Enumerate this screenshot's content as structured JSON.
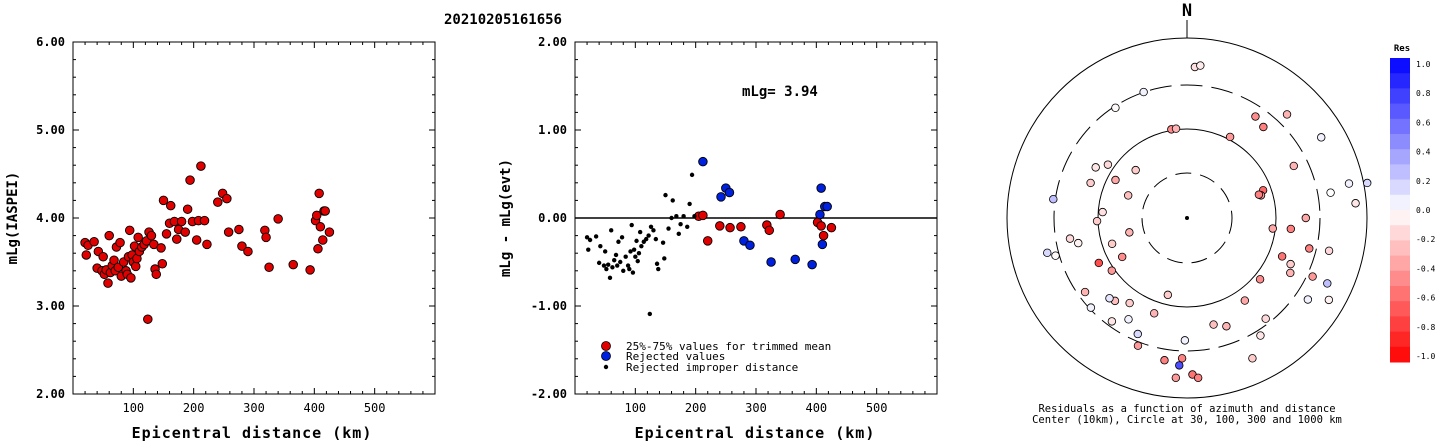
{
  "event_title": "20210205161656",
  "colors": {
    "trimmed": "#e00000",
    "rejected": "#0020e0",
    "improper": "#000000"
  },
  "chart_data": [
    {
      "type": "scatter",
      "ylabel": "mLg(IASPEI)",
      "xlabel": "Epicentral distance (km)",
      "xlim": [
        0,
        600
      ],
      "ylim": [
        2.0,
        6.0
      ],
      "xticks": [
        "100",
        "200",
        "300",
        "400",
        "500"
      ],
      "yticks": [
        "2.00",
        "3.00",
        "4.00",
        "5.00",
        "6.00"
      ],
      "points": [
        [
          20,
          3.72
        ],
        [
          22,
          3.58
        ],
        [
          25,
          3.69
        ],
        [
          35,
          3.73
        ],
        [
          40,
          3.43
        ],
        [
          42,
          3.62
        ],
        [
          48,
          3.4
        ],
        [
          50,
          3.56
        ],
        [
          52,
          3.36
        ],
        [
          55,
          3.41
        ],
        [
          58,
          3.26
        ],
        [
          60,
          3.8
        ],
        [
          62,
          3.38
        ],
        [
          65,
          3.46
        ],
        [
          68,
          3.52
        ],
        [
          70,
          3.4
        ],
        [
          72,
          3.67
        ],
        [
          75,
          3.44
        ],
        [
          78,
          3.72
        ],
        [
          80,
          3.34
        ],
        [
          84,
          3.5
        ],
        [
          88,
          3.4
        ],
        [
          90,
          3.36
        ],
        [
          92,
          3.56
        ],
        [
          94,
          3.86
        ],
        [
          96,
          3.32
        ],
        [
          98,
          3.58
        ],
        [
          100,
          3.5
        ],
        [
          102,
          3.68
        ],
        [
          104,
          3.45
        ],
        [
          106,
          3.54
        ],
        [
          108,
          3.78
        ],
        [
          110,
          3.62
        ],
        [
          114,
          3.67
        ],
        [
          118,
          3.7
        ],
        [
          122,
          3.74
        ],
        [
          124,
          2.85
        ],
        [
          126,
          3.84
        ],
        [
          130,
          3.8
        ],
        [
          134,
          3.7
        ],
        [
          136,
          3.42
        ],
        [
          138,
          3.36
        ],
        [
          146,
          3.66
        ],
        [
          148,
          3.48
        ],
        [
          150,
          4.2
        ],
        [
          155,
          3.82
        ],
        [
          160,
          3.94
        ],
        [
          162,
          4.14
        ],
        [
          168,
          3.96
        ],
        [
          172,
          3.76
        ],
        [
          175,
          3.87
        ],
        [
          180,
          3.96
        ],
        [
          186,
          3.84
        ],
        [
          190,
          4.1
        ],
        [
          194,
          4.43
        ],
        [
          198,
          3.96
        ],
        [
          205,
          3.75
        ],
        [
          208,
          3.97
        ],
        [
          212,
          4.59
        ],
        [
          218,
          3.97
        ],
        [
          222,
          3.7
        ],
        [
          240,
          4.18
        ],
        [
          248,
          4.28
        ],
        [
          255,
          4.22
        ],
        [
          258,
          3.84
        ],
        [
          275,
          3.87
        ],
        [
          280,
          3.68
        ],
        [
          290,
          3.62
        ],
        [
          318,
          3.86
        ],
        [
          320,
          3.78
        ],
        [
          325,
          3.44
        ],
        [
          340,
          3.99
        ],
        [
          365,
          3.47
        ],
        [
          393,
          3.41
        ],
        [
          402,
          3.97
        ],
        [
          404,
          4.03
        ],
        [
          406,
          3.65
        ],
        [
          408,
          4.28
        ],
        [
          410,
          3.9
        ],
        [
          414,
          3.75
        ],
        [
          416,
          4.08
        ],
        [
          418,
          4.08
        ],
        [
          425,
          3.84
        ]
      ]
    },
    {
      "type": "scatter",
      "ylabel": "mLg - mLg(evt)",
      "xlabel": "Epicentral distance (km)",
      "xlim": [
        0,
        600
      ],
      "ylim": [
        -2.0,
        2.0
      ],
      "xticks": [
        "100",
        "200",
        "300",
        "400",
        "500"
      ],
      "yticks": [
        "-2.00",
        "-1.00",
        "0.00",
        "1.00",
        "2.00"
      ],
      "annotation": "mLg= 3.94",
      "legend": [
        "25%-75% values for trimmed mean",
        "Rejected values",
        "Rejected improper distance"
      ],
      "series": [
        {
          "kind": "trimmed",
          "points": [
            [
              205,
              0.02
            ],
            [
              212,
              0.03
            ],
            [
              220,
              -0.26
            ],
            [
              240,
              -0.09
            ],
            [
              257,
              -0.11
            ],
            [
              275,
              -0.1
            ],
            [
              318,
              -0.08
            ],
            [
              322,
              -0.14
            ],
            [
              340,
              0.04
            ],
            [
              402,
              -0.05
            ],
            [
              408,
              -0.09
            ],
            [
              412,
              -0.2
            ],
            [
              425,
              -0.11
            ]
          ]
        },
        {
          "kind": "rejected",
          "points": [
            [
              212,
              0.64
            ],
            [
              242,
              0.24
            ],
            [
              250,
              0.34
            ],
            [
              256,
              0.29
            ],
            [
              280,
              -0.26
            ],
            [
              290,
              -0.31
            ],
            [
              325,
              -0.5
            ],
            [
              365,
              -0.47
            ],
            [
              393,
              -0.53
            ],
            [
              406,
              0.04
            ],
            [
              408,
              0.34
            ],
            [
              410,
              -0.3
            ],
            [
              414,
              0.13
            ],
            [
              418,
              0.13
            ]
          ]
        },
        {
          "kind": "improper",
          "points": [
            [
              20,
              -0.22
            ],
            [
              22,
              -0.36
            ],
            [
              25,
              -0.25
            ],
            [
              35,
              -0.21
            ],
            [
              40,
              -0.51
            ],
            [
              42,
              -0.32
            ],
            [
              48,
              -0.54
            ],
            [
              50,
              -0.38
            ],
            [
              52,
              -0.58
            ],
            [
              55,
              -0.53
            ],
            [
              58,
              -0.68
            ],
            [
              60,
              -0.14
            ],
            [
              62,
              -0.56
            ],
            [
              65,
              -0.48
            ],
            [
              68,
              -0.42
            ],
            [
              70,
              -0.54
            ],
            [
              72,
              -0.27
            ],
            [
              75,
              -0.5
            ],
            [
              78,
              -0.22
            ],
            [
              80,
              -0.6
            ],
            [
              84,
              -0.44
            ],
            [
              88,
              -0.54
            ],
            [
              90,
              -0.58
            ],
            [
              92,
              -0.38
            ],
            [
              94,
              -0.08
            ],
            [
              96,
              -0.62
            ],
            [
              98,
              -0.36
            ],
            [
              100,
              -0.44
            ],
            [
              102,
              -0.26
            ],
            [
              104,
              -0.49
            ],
            [
              106,
              -0.4
            ],
            [
              108,
              -0.16
            ],
            [
              110,
              -0.32
            ],
            [
              114,
              -0.27
            ],
            [
              118,
              -0.24
            ],
            [
              122,
              -0.2
            ],
            [
              124,
              -1.09
            ],
            [
              126,
              -0.1
            ],
            [
              130,
              -0.14
            ],
            [
              134,
              -0.24
            ],
            [
              136,
              -0.52
            ],
            [
              138,
              -0.58
            ],
            [
              146,
              -0.28
            ],
            [
              148,
              -0.46
            ],
            [
              150,
              0.26
            ],
            [
              155,
              -0.12
            ],
            [
              160,
              0.0
            ],
            [
              162,
              0.2
            ],
            [
              168,
              0.02
            ],
            [
              172,
              -0.18
            ],
            [
              175,
              -0.07
            ],
            [
              180,
              0.02
            ],
            [
              186,
              -0.1
            ],
            [
              190,
              0.16
            ],
            [
              194,
              0.49
            ],
            [
              198,
              0.02
            ]
          ]
        }
      ]
    },
    {
      "type": "polar-scatter",
      "north_label": "N",
      "caption_line1": "Residuals as a function of azimuth and distance",
      "caption_line2": "Center (10km), Circle at 30, 100, 300 and 1000 km",
      "rings": [
        30,
        100,
        300,
        1000
      ],
      "colorbar": {
        "title": "Res",
        "ticks": [
          "1.0",
          "0.8",
          "0.6",
          "0.4",
          "0.2",
          "0.0",
          "-0.2",
          "-0.4",
          "-0.6",
          "-0.8",
          "-1.0"
        ]
      },
      "points": [
        {
          "az": 3,
          "r": 0.84,
          "res": -0.12
        },
        {
          "az": 5,
          "r": 0.85,
          "res": -0.08
        },
        {
          "az": -19,
          "r": 0.74,
          "res": 0.05
        },
        {
          "az": -33,
          "r": 0.73,
          "res": -0.02
        },
        {
          "az": -10,
          "r": 0.5,
          "res": -0.45
        },
        {
          "az": -7,
          "r": 0.5,
          "res": -0.3
        },
        {
          "az": -47,
          "r": 0.39,
          "res": -0.2
        },
        {
          "az": -61,
          "r": 0.58,
          "res": -0.1
        },
        {
          "az": -56,
          "r": 0.53,
          "res": -0.15
        },
        {
          "az": -62,
          "r": 0.45,
          "res": -0.35
        },
        {
          "az": -69,
          "r": 0.35,
          "res": -0.25
        },
        {
          "az": -70,
          "r": 0.57,
          "res": -0.2
        },
        {
          "az": -86,
          "r": 0.47,
          "res": -0.12
        },
        {
          "az": -82,
          "r": 0.75,
          "res": 0.25
        },
        {
          "az": -104,
          "r": 0.8,
          "res": 0.15
        },
        {
          "az": -103,
          "r": 0.62,
          "res": -0.05
        },
        {
          "az": -109,
          "r": 0.44,
          "res": -0.2
        },
        {
          "az": -104,
          "r": 0.33,
          "res": -0.3
        },
        {
          "az": -106,
          "r": 0.76,
          "res": -0.02
        },
        {
          "az": -117,
          "r": 0.55,
          "res": -0.7
        },
        {
          "az": -125,
          "r": 0.51,
          "res": -0.4
        },
        {
          "az": -121,
          "r": 0.42,
          "res": -0.45
        },
        {
          "az": -126,
          "r": 0.7,
          "res": -0.3
        },
        {
          "az": -139,
          "r": 0.61,
          "res": -0.25
        },
        {
          "az": -144,
          "r": 0.71,
          "res": -0.1
        },
        {
          "az": -146,
          "r": 0.57,
          "res": -0.2
        },
        {
          "az": -136,
          "r": 0.62,
          "res": 0.1
        },
        {
          "az": -150,
          "r": 0.65,
          "res": 0.05
        },
        {
          "az": -159,
          "r": 0.76,
          "res": -0.4
        },
        {
          "az": -171,
          "r": 0.8,
          "res": -0.5
        },
        {
          "az": -179,
          "r": 0.68,
          "res": 0.05
        },
        {
          "az": -178,
          "r": 0.78,
          "res": -0.5
        },
        {
          "az": -176,
          "r": 0.89,
          "res": -0.4
        },
        {
          "az": -161,
          "r": 0.56,
          "res": -0.3
        },
        {
          "az": -166,
          "r": 0.44,
          "res": -0.2
        },
        {
          "az": -177,
          "r": 0.82,
          "res": 0.7
        },
        {
          "az": 178,
          "r": 0.87,
          "res": -0.55
        },
        {
          "az": 176,
          "r": 0.89,
          "res": -0.5
        },
        {
          "az": 166,
          "r": 0.61,
          "res": -0.25
        },
        {
          "az": 160,
          "r": 0.64,
          "res": -0.3
        },
        {
          "az": 155,
          "r": 0.86,
          "res": -0.2
        },
        {
          "az": 148,
          "r": 0.77,
          "res": -0.1
        },
        {
          "az": 145,
          "r": 0.56,
          "res": -0.35
        },
        {
          "az": 142,
          "r": 0.71,
          "res": -0.15
        },
        {
          "az": 130,
          "r": 0.53,
          "res": -0.45
        },
        {
          "az": 118,
          "r": 0.65,
          "res": -0.3
        },
        {
          "az": 115,
          "r": 0.77,
          "res": -0.4
        },
        {
          "az": 114,
          "r": 0.63,
          "res": -0.2
        },
        {
          "az": 120,
          "r": 0.91,
          "res": -0.05
        },
        {
          "az": 104,
          "r": 0.7,
          "res": -0.5
        },
        {
          "az": 112,
          "r": 0.57,
          "res": -0.55
        },
        {
          "az": 103,
          "r": 0.81,
          "res": -0.15
        },
        {
          "az": 97,
          "r": 0.48,
          "res": -0.35
        },
        {
          "az": 96,
          "r": 0.58,
          "res": -0.5
        },
        {
          "az": 70,
          "r": 0.45,
          "res": -0.6
        },
        {
          "az": 73,
          "r": 0.43,
          "res": -0.4
        },
        {
          "az": 64,
          "r": 0.66,
          "res": -0.3
        },
        {
          "az": 72,
          "r": 0.42,
          "res": -0.5
        },
        {
          "az": 80,
          "r": 0.81,
          "res": 0.0
        },
        {
          "az": 79,
          "r": 1.02,
          "res": 0.15
        },
        {
          "az": 85,
          "r": 0.94,
          "res": -0.1
        },
        {
          "az": 78,
          "r": 0.92,
          "res": 0.05
        },
        {
          "az": 90,
          "r": 0.66,
          "res": -0.35
        },
        {
          "az": 115,
          "r": 0.86,
          "res": 0.25
        },
        {
          "az": 124,
          "r": 0.81,
          "res": 0.05
        },
        {
          "az": 40,
          "r": 0.66,
          "res": -0.5
        },
        {
          "az": 44,
          "r": 0.8,
          "res": -0.3
        },
        {
          "az": 34,
          "r": 0.68,
          "res": -0.45
        },
        {
          "az": 59,
          "r": 0.87,
          "res": 0.05
        },
        {
          "az": 28,
          "r": 0.51,
          "res": -0.4
        },
        {
          "az": -100,
          "r": 0.66,
          "res": -0.15
        },
        {
          "az": -92,
          "r": 0.5,
          "res": -0.2
        },
        {
          "az": -133,
          "r": 0.73,
          "res": 0.05
        },
        {
          "az": -157,
          "r": 0.7,
          "res": 0.15
        }
      ]
    }
  ]
}
